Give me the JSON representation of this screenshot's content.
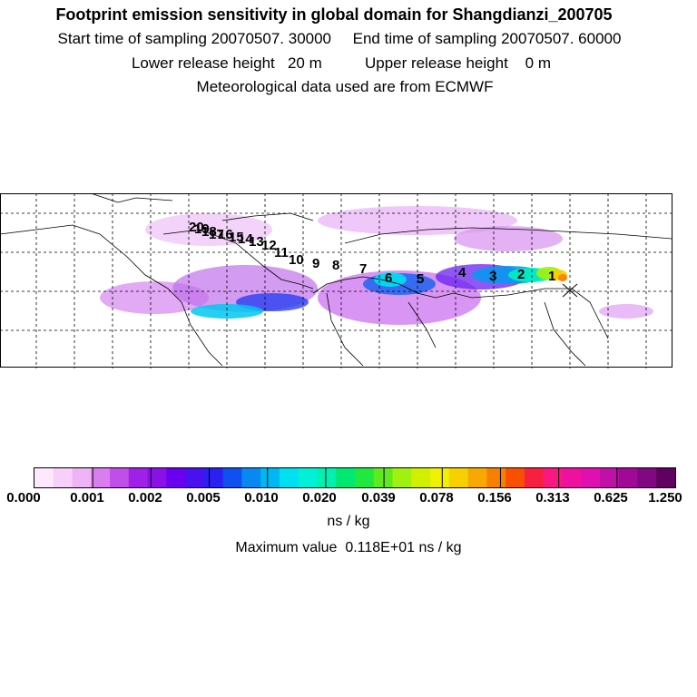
{
  "header": {
    "title": "Footprint emission sensitivity in global domain for Shangdianzi_200705",
    "line2": "Start time of sampling 20070507. 30000     End time of sampling 20070507. 60000",
    "line3": "Lower release height   20 m          Upper release height    0 m",
    "line4": "Meteorological data used are from ECMWF"
  },
  "map": {
    "trajectory_labels": [
      "1",
      "2",
      "3",
      "4",
      "5",
      "6",
      "7",
      "8",
      "9",
      "10",
      "11",
      "12",
      "13",
      "14",
      "15",
      "16",
      "17",
      "18",
      "19",
      "20"
    ]
  },
  "colorbar": {
    "ticks": [
      "0.000",
      "0.001",
      "0.002",
      "0.005",
      "0.010",
      "0.020",
      "0.039",
      "0.078",
      "0.156",
      "0.313",
      "0.625",
      "1.250"
    ],
    "colors": [
      "#fde8fd",
      "#f6d0f8",
      "#ee b4f5",
      "#d97ef0",
      "#c04ee8",
      "#a020e8",
      "#8a10e8",
      "#6a00f0",
      "#4a10f0",
      "#2a20f0",
      "#1050f0",
      "#0888f0",
      "#00b8f0",
      "#00e0f0",
      "#00f0d8",
      "#00f0b0",
      "#00e870",
      "#20e840",
      "#60e820",
      "#a0f010",
      "#d0f000",
      "#f0f000",
      "#f8d000",
      "#f8a800",
      "#f88000",
      "#f85000",
      "#f82040",
      "#f81880",
      "#f010a0",
      "#e010b0",
      "#c010a8",
      "#a00898",
      "#800880",
      "#600060"
    ],
    "unit": "ns / kg",
    "maximum": "Maximum value  0.118E+01 ns / kg"
  }
}
